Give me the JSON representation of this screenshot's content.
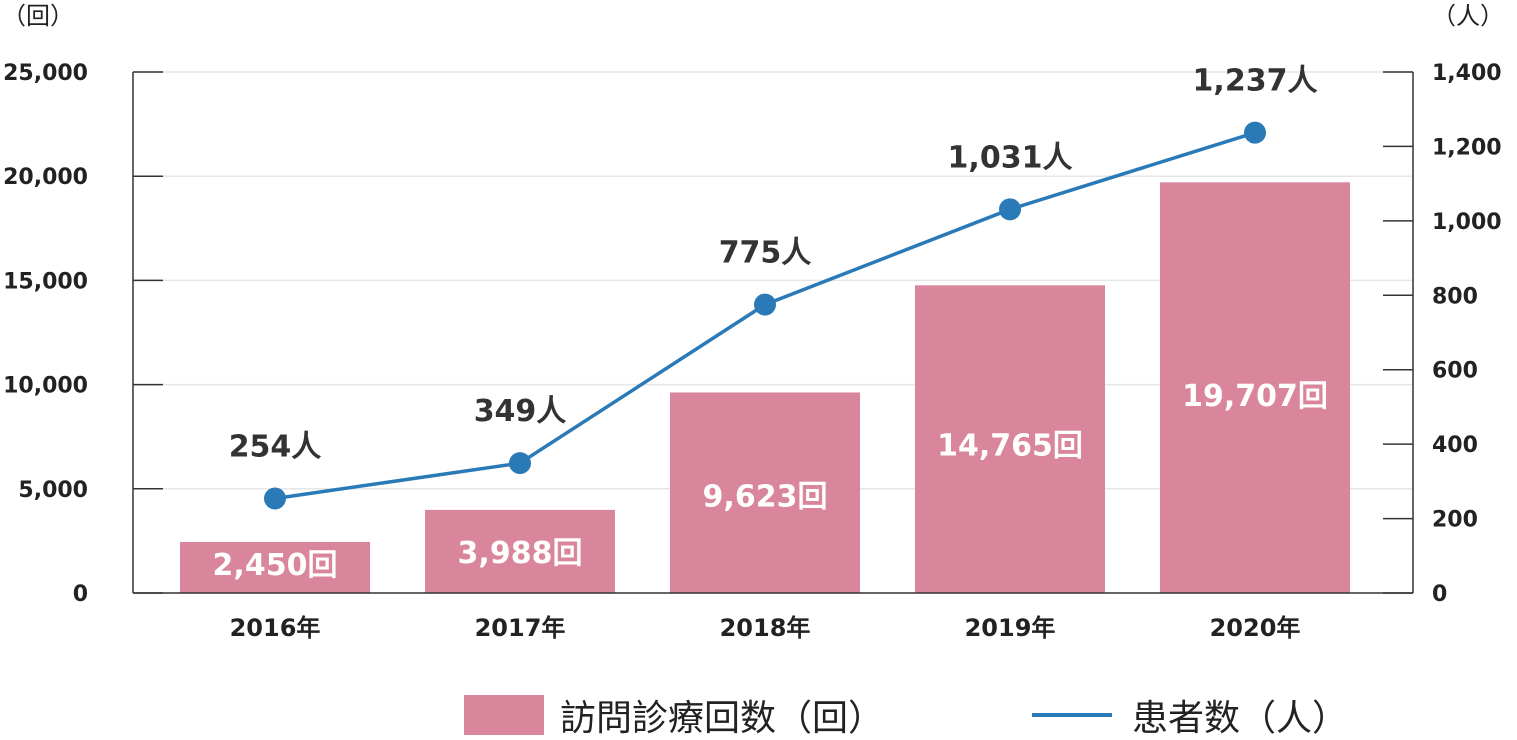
{
  "chart_data": {
    "type": "bar",
    "categories": [
      "2016年",
      "2017年",
      "2018年",
      "2019年",
      "2020年"
    ],
    "left_axis": {
      "unit_label": "（回）",
      "range": [
        0,
        25000
      ],
      "ticks": [
        "0",
        "5,000",
        "10,000",
        "15,000",
        "20,000",
        "25,000"
      ]
    },
    "right_axis": {
      "unit_label": "（人）",
      "range": [
        0,
        1400
      ],
      "ticks": [
        "0",
        "200",
        "400",
        "600",
        "800",
        "1,000",
        "1,200",
        "1,400"
      ]
    },
    "series": [
      {
        "name": "訪問診療回数（回）",
        "type": "bar",
        "axis": "left",
        "color": "#d9869c",
        "values": [
          2450,
          3988,
          9623,
          14765,
          19707
        ],
        "labels": [
          "2,450回",
          "3,988回",
          "9,623回",
          "14,765回",
          "19,707回"
        ]
      },
      {
        "name": "患者数（人）",
        "type": "line",
        "axis": "right",
        "color": "#2a7ab8",
        "values": [
          254,
          349,
          775,
          1031,
          1237
        ],
        "labels": [
          "254人",
          "349人",
          "775人",
          "1,031人",
          "1,237人"
        ]
      }
    ],
    "grid": true,
    "legend_position": "bottom"
  }
}
